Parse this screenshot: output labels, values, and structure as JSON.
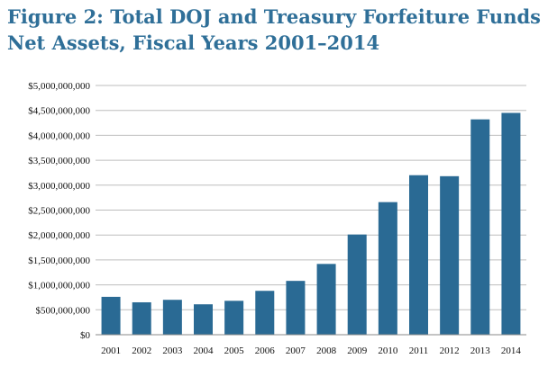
{
  "chart_data": {
    "type": "bar",
    "title_lines": [
      "Figure 2: Total DOJ and Treasury Forfeiture Funds",
      "Net Assets, Fiscal Years 2001–2014"
    ],
    "categories": [
      "2001",
      "2002",
      "2003",
      "2004",
      "2005",
      "2006",
      "2007",
      "2008",
      "2009",
      "2010",
      "2011",
      "2012",
      "2013",
      "2014"
    ],
    "values": [
      760000000,
      650000000,
      700000000,
      610000000,
      680000000,
      880000000,
      1080000000,
      1420000000,
      2010000000,
      2660000000,
      3200000000,
      3180000000,
      4320000000,
      4450000000
    ],
    "y_ticks": [
      "$0",
      "$500,000,000",
      "$1,000,000,000",
      "$1,500,000,000",
      "$2,000,000,000",
      "$2,500,000,000",
      "$3,000,000,000",
      "$3,500,000,000",
      "$4,000,000,000",
      "$4,500,000,000",
      "$5,000,000,000"
    ],
    "ylim": [
      0,
      5000000000
    ],
    "grid": true,
    "bar_color": "#2a6a94",
    "grid_color": "#bdbdbd"
  }
}
